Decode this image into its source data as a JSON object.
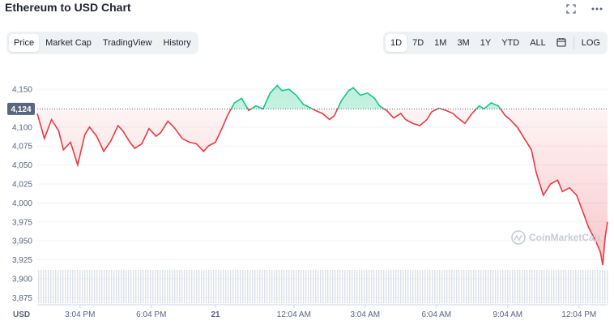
{
  "header": {
    "title": "Ethereum to USD Chart"
  },
  "icons": {
    "fullscreen": "expand-icon",
    "more": "more-icon"
  },
  "tabs": [
    {
      "label": "Price",
      "active": true
    },
    {
      "label": "Market Cap",
      "active": false
    },
    {
      "label": "TradingView",
      "active": false
    },
    {
      "label": "History",
      "active": false
    }
  ],
  "ranges": [
    {
      "label": "1D",
      "active": true
    },
    {
      "label": "7D",
      "active": false
    },
    {
      "label": "1M",
      "active": false
    },
    {
      "label": "3M",
      "active": false
    },
    {
      "label": "1Y",
      "active": false
    },
    {
      "label": "YTD",
      "active": false
    },
    {
      "label": "ALL",
      "active": false
    }
  ],
  "log_label": "LOG",
  "watermark": "CoinMarketCap",
  "colors": {
    "up": "#16c784",
    "down": "#ea3943",
    "grid": "#eff2f5",
    "tag": "#58667e"
  },
  "chart_data": {
    "type": "line",
    "currency_label": "USD",
    "reference_price": 4124,
    "reference_label": "4,124",
    "ylim": [
      3870,
      4180
    ],
    "xlim": [
      0,
      24
    ],
    "yticks": [
      {
        "value": 4150,
        "label": "4,150"
      },
      {
        "value": 4100,
        "label": "4,100"
      },
      {
        "value": 4075,
        "label": "4,075"
      },
      {
        "value": 4050,
        "label": "4,050"
      },
      {
        "value": 4025,
        "label": "4,025"
      },
      {
        "value": 4000,
        "label": "4,000"
      },
      {
        "value": 3975,
        "label": "3,975"
      },
      {
        "value": 3950,
        "label": "3,950"
      },
      {
        "value": 3925,
        "label": "3,925"
      },
      {
        "value": 3900,
        "label": "3,900"
      },
      {
        "value": 3875,
        "label": "3,875"
      }
    ],
    "xticks": [
      {
        "value": 1.8,
        "label": "3:04 PM"
      },
      {
        "value": 4.8,
        "label": "6:04 PM"
      },
      {
        "value": 7.5,
        "label": "21"
      },
      {
        "value": 10.8,
        "label": "12:04 AM"
      },
      {
        "value": 13.8,
        "label": "3:04 AM"
      },
      {
        "value": 16.8,
        "label": "6:04 AM"
      },
      {
        "value": 19.8,
        "label": "9:04 AM"
      },
      {
        "value": 22.8,
        "label": "12:04 PM"
      }
    ],
    "points": [
      [
        0.0,
        4118
      ],
      [
        0.3,
        4085
      ],
      [
        0.6,
        4110
      ],
      [
        0.9,
        4095
      ],
      [
        1.1,
        4070
      ],
      [
        1.4,
        4080
      ],
      [
        1.7,
        4050
      ],
      [
        2.0,
        4090
      ],
      [
        2.2,
        4100
      ],
      [
        2.5,
        4088
      ],
      [
        2.8,
        4068
      ],
      [
        3.1,
        4082
      ],
      [
        3.4,
        4102
      ],
      [
        3.6,
        4095
      ],
      [
        3.9,
        4080
      ],
      [
        4.1,
        4072
      ],
      [
        4.4,
        4078
      ],
      [
        4.7,
        4098
      ],
      [
        5.0,
        4088
      ],
      [
        5.2,
        4093
      ],
      [
        5.5,
        4108
      ],
      [
        5.8,
        4098
      ],
      [
        6.1,
        4085
      ],
      [
        6.4,
        4080
      ],
      [
        6.7,
        4078
      ],
      [
        7.0,
        4068
      ],
      [
        7.2,
        4075
      ],
      [
        7.5,
        4080
      ],
      [
        7.8,
        4100
      ],
      [
        8.0,
        4115
      ],
      [
        8.3,
        4132
      ],
      [
        8.6,
        4138
      ],
      [
        8.9,
        4122
      ],
      [
        9.2,
        4128
      ],
      [
        9.5,
        4124
      ],
      [
        9.8,
        4145
      ],
      [
        10.1,
        4155
      ],
      [
        10.3,
        4148
      ],
      [
        10.6,
        4150
      ],
      [
        10.9,
        4142
      ],
      [
        11.2,
        4130
      ],
      [
        11.4,
        4127
      ],
      [
        11.7,
        4122
      ],
      [
        12.0,
        4118
      ],
      [
        12.3,
        4110
      ],
      [
        12.5,
        4115
      ],
      [
        12.8,
        4135
      ],
      [
        13.1,
        4148
      ],
      [
        13.3,
        4152
      ],
      [
        13.6,
        4142
      ],
      [
        13.9,
        4145
      ],
      [
        14.2,
        4138
      ],
      [
        14.4,
        4128
      ],
      [
        14.7,
        4122
      ],
      [
        15.0,
        4112
      ],
      [
        15.3,
        4118
      ],
      [
        15.5,
        4110
      ],
      [
        15.8,
        4105
      ],
      [
        16.1,
        4102
      ],
      [
        16.4,
        4110
      ],
      [
        16.6,
        4120
      ],
      [
        16.9,
        4125
      ],
      [
        17.2,
        4122
      ],
      [
        17.5,
        4118
      ],
      [
        17.7,
        4112
      ],
      [
        18.0,
        4105
      ],
      [
        18.3,
        4118
      ],
      [
        18.6,
        4128
      ],
      [
        18.8,
        4124
      ],
      [
        19.1,
        4132
      ],
      [
        19.4,
        4128
      ],
      [
        19.7,
        4115
      ],
      [
        19.9,
        4110
      ],
      [
        20.2,
        4100
      ],
      [
        20.5,
        4085
      ],
      [
        20.8,
        4070
      ],
      [
        21.0,
        4040
      ],
      [
        21.3,
        4010
      ],
      [
        21.6,
        4025
      ],
      [
        21.9,
        4030
      ],
      [
        22.1,
        4015
      ],
      [
        22.4,
        4020
      ],
      [
        22.7,
        4010
      ],
      [
        23.0,
        3985
      ],
      [
        23.2,
        3968
      ],
      [
        23.5,
        3950
      ],
      [
        23.7,
        3935
      ],
      [
        23.8,
        3918
      ],
      [
        23.9,
        3955
      ],
      [
        24.0,
        3975
      ]
    ]
  }
}
